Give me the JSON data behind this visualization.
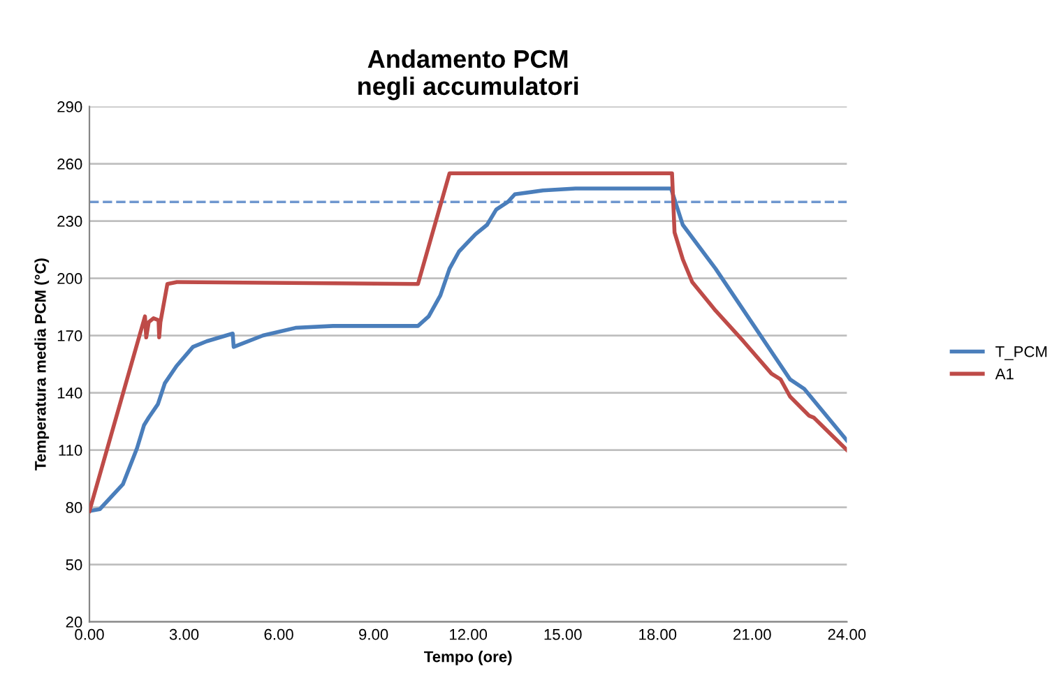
{
  "chart_data": {
    "type": "line",
    "title": "Andamento PCM\nnegli accumulatori",
    "xlabel": "Tempo (ore)",
    "ylabel": "Temperatura media PCM (°C)",
    "xlim": [
      0,
      24
    ],
    "ylim": [
      20,
      290
    ],
    "xticks": [
      {
        "value": 0,
        "label": "0.00"
      },
      {
        "value": 3,
        "label": "3.00"
      },
      {
        "value": 6,
        "label": "6.00"
      },
      {
        "value": 9,
        "label": "9.00"
      },
      {
        "value": 12,
        "label": "12.00"
      },
      {
        "value": 15,
        "label": "15.00"
      },
      {
        "value": 18,
        "label": "18.00"
      },
      {
        "value": 21,
        "label": "21.00"
      },
      {
        "value": 24,
        "label": "24.00"
      }
    ],
    "yticks": [
      20,
      50,
      80,
      110,
      140,
      170,
      200,
      230,
      260,
      290
    ],
    "grid": "y",
    "legend": "right",
    "line_style": "solid",
    "marker": "none",
    "ref_lines": [
      {
        "axis": "y",
        "value": 240,
        "label": null,
        "color": "#6f97cf",
        "line_style": "dashed"
      }
    ],
    "series": [
      {
        "name": "T_PCM",
        "color": "#4a7ebb",
        "x": [
          0,
          0.33,
          1.06,
          1.51,
          1.73,
          1.88,
          2.17,
          2.39,
          2.76,
          3.28,
          3.72,
          4.54,
          4.57,
          5.5,
          6.53,
          7.72,
          10.41,
          10.75,
          11.12,
          11.41,
          11.71,
          12.23,
          12.6,
          12.89,
          13.26,
          13.48,
          14.37,
          15.4,
          18.43,
          18.8,
          19.84,
          21.02,
          22.2,
          22.65,
          24
        ],
        "values": [
          78,
          79,
          92,
          111,
          123,
          127,
          134,
          145,
          154,
          164,
          167,
          171,
          164,
          170,
          174,
          175,
          175,
          180,
          191,
          205,
          214,
          223,
          228,
          236,
          240,
          244,
          246,
          247,
          247,
          228,
          205,
          176,
          147,
          142,
          115
        ]
      },
      {
        "name": "A1",
        "color": "#be4b48",
        "x": [
          0,
          1.76,
          1.8,
          1.88,
          2.03,
          2.19,
          2.21,
          2.25,
          2.47,
          2.77,
          10.41,
          11.41,
          18.46,
          18.54,
          18.8,
          19.1,
          19.84,
          20.72,
          21.61,
          21.9,
          22.2,
          22.8,
          22.95,
          24
        ],
        "values": [
          78,
          180,
          169,
          177,
          179,
          178,
          169,
          177,
          197,
          198,
          197,
          255,
          255,
          224,
          210,
          198,
          183,
          167,
          150,
          147,
          138,
          128,
          127,
          110
        ]
      }
    ]
  }
}
